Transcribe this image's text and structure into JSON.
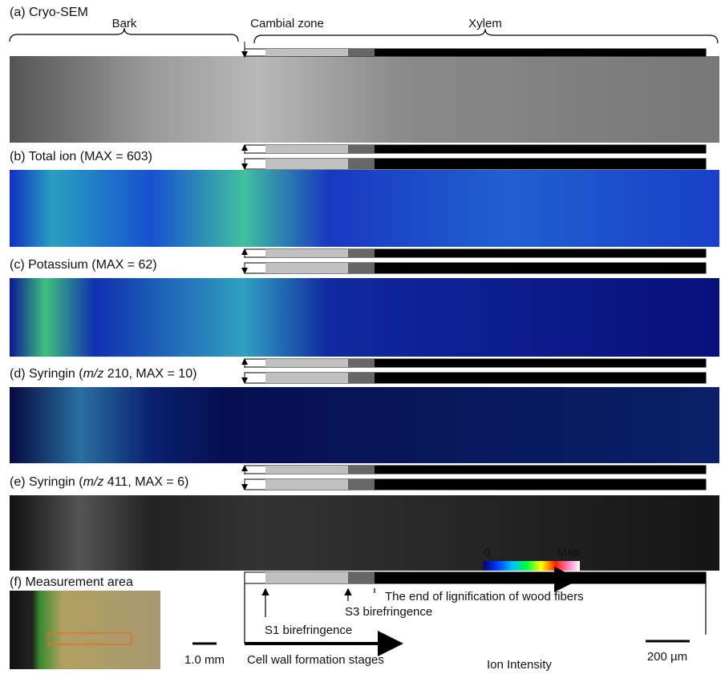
{
  "header": {
    "region_labels": [
      "Bark",
      "Cambial zone",
      "Xylem"
    ]
  },
  "panels": [
    {
      "label": "(a) Cryo-SEM"
    },
    {
      "label": "(b) Total ion (MAX = 603)"
    },
    {
      "label": "(c) Potassium (MAX = 62)"
    },
    {
      "label_parts": [
        "(d) Syringin (",
        "m/z",
        " 210, MAX = 10)"
      ]
    },
    {
      "label_parts": [
        "(e) Syringin (",
        "m/z",
        " 411, MAX = 6)"
      ]
    }
  ],
  "measurement": {
    "label": "(f) Measurement area",
    "scale_bar": "1.0 mm"
  },
  "annotations": {
    "s1": "S1 birefringence",
    "s3": "S3 birefringence",
    "lignification": "The end of lignification of wood fibers",
    "stages": "Cell wall formation stages"
  },
  "colorbar": {
    "min": "0",
    "max": "Max",
    "label": "Ion Intensity"
  },
  "scale_bar": "200 µm"
}
